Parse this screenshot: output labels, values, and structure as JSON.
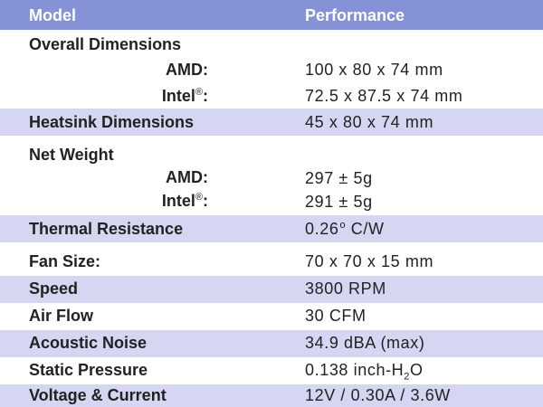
{
  "header": {
    "col1": "Model",
    "col2": "Performance"
  },
  "dims": {
    "title": "Overall Dimensions",
    "amd_label": "AMD:",
    "amd_value": "100 x 80 x 74 mm",
    "intel_label": "Intel",
    "intel_reg": "®",
    "intel_colon": ":",
    "intel_value": "72.5 x 87.5 x 74 mm"
  },
  "heatsink": {
    "label": "Heatsink Dimensions",
    "value": "45 x 80 x 74 mm"
  },
  "weight": {
    "title": "Net Weight",
    "amd_label": "AMD:",
    "amd_value": "297 ± 5g",
    "intel_label": "Intel",
    "intel_reg": "®",
    "intel_colon": ":",
    "intel_value": "291 ± 5g"
  },
  "thermal": {
    "label": "Thermal Resistance",
    "value_main": "0.26",
    "value_sup": "o",
    "value_unit": " C/W"
  },
  "fan": {
    "label": "Fan Size:",
    "value": "70 x 70 x 15 mm"
  },
  "speed": {
    "label": "Speed",
    "value": "3800 RPM"
  },
  "airflow": {
    "label": "Air Flow",
    "value": "30 CFM"
  },
  "noise": {
    "label": "Acoustic Noise",
    "value": "34.9 dBA (max)"
  },
  "pressure": {
    "label": "Static Pressure",
    "value_main": "0.138 inch-H",
    "value_sub": "2",
    "value_end": "O"
  },
  "voltage": {
    "label": "Voltage & Current",
    "value": "12V / 0.30A / 3.6W"
  },
  "colors": {
    "header_bg": "#8593d6",
    "shade_bg": "#d4d6f2",
    "text": "#222222"
  }
}
